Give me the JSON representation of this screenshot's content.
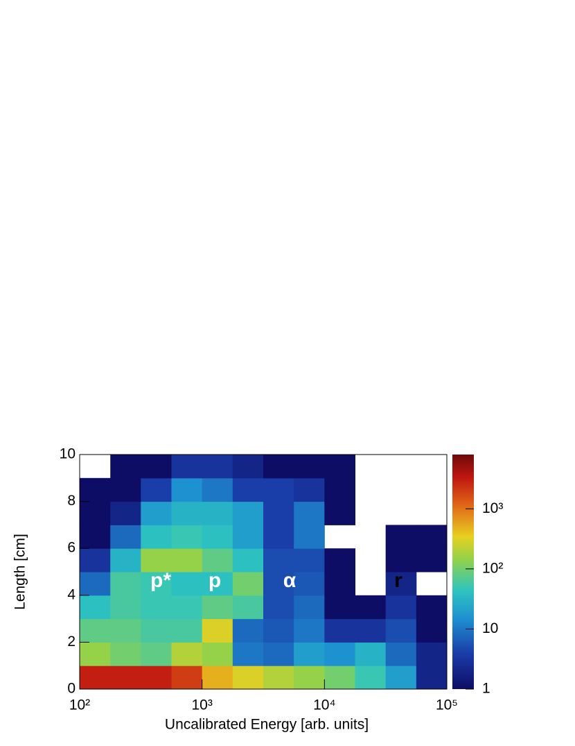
{
  "chart_data": {
    "type": "heatmap",
    "xlabel": "Uncalibrated Energy [arb. units]",
    "ylabel": "Length [cm]",
    "log_x": true,
    "log_z": true,
    "xbins": [
      100,
      178,
      316,
      562,
      1000,
      1778,
      3162,
      5623,
      10000,
      17783,
      31623,
      56234,
      100000
    ],
    "ybins": [
      0,
      1,
      2,
      3,
      4,
      5,
      6,
      7,
      8,
      9,
      10
    ],
    "z": [
      [
        3000,
        3000,
        3000,
        2000,
        500,
        300,
        200,
        150,
        100,
        50,
        20,
        2
      ],
      [
        150,
        100,
        80,
        200,
        150,
        10,
        8,
        20,
        15,
        30,
        8,
        2
      ],
      [
        80,
        80,
        60,
        60,
        300,
        8,
        6,
        10,
        3,
        3,
        5,
        1
      ],
      [
        40,
        60,
        50,
        50,
        80,
        60,
        5,
        8,
        1,
        1,
        3,
        1
      ],
      [
        8,
        60,
        50,
        40,
        40,
        100,
        5,
        6,
        1,
        null,
        2,
        null
      ],
      [
        3,
        30,
        150,
        150,
        80,
        40,
        5,
        5,
        1,
        null,
        1,
        1
      ],
      [
        1,
        8,
        40,
        50,
        40,
        20,
        4,
        10,
        null,
        null,
        1,
        1
      ],
      [
        1,
        2,
        20,
        30,
        30,
        20,
        4,
        10,
        1,
        null,
        null,
        null
      ],
      [
        1,
        1,
        4,
        15,
        10,
        4,
        4,
        3,
        1,
        null,
        null,
        null
      ],
      [
        null,
        1,
        1,
        3,
        3,
        2,
        1,
        1,
        1,
        null,
        null,
        null
      ]
    ],
    "xlim": [
      100,
      100000
    ],
    "xticks": [
      {
        "value": 100,
        "label": "10²"
      },
      {
        "value": 1000,
        "label": "10³"
      },
      {
        "value": 10000,
        "label": "10⁴"
      },
      {
        "value": 100000,
        "label": "10⁵"
      }
    ],
    "ylim": [
      0,
      10
    ],
    "yticks": [
      0,
      2,
      4,
      6,
      8,
      10
    ],
    "zlim": [
      1,
      8000
    ],
    "zticks": [
      1,
      10,
      {
        "value": 100,
        "label": "10²"
      },
      {
        "value": 1000,
        "label": "10³"
      }
    ],
    "annotations": [
      {
        "text": "p*",
        "color": "#ffffff"
      },
      {
        "text": "p",
        "color": "#ffffff"
      },
      {
        "text": "α",
        "color": "#ffffff"
      },
      {
        "text": "r",
        "color": "#000000"
      }
    ]
  }
}
